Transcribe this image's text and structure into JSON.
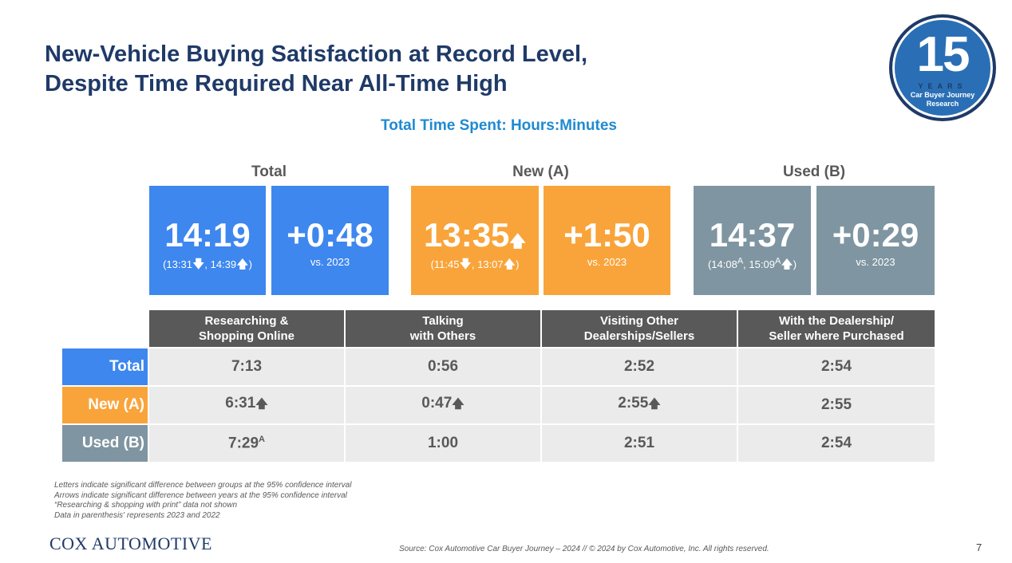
{
  "title_line1": "New-Vehicle Buying Satisfaction at Record Level,",
  "title_line2": "Despite Time Required Near All-Time High",
  "subtitle": "Total Time Spent: Hours:Minutes",
  "badge": {
    "number": "15",
    "years": "YEARS",
    "line1": "Car Buyer Journey",
    "line2": "Research"
  },
  "groups": {
    "total": {
      "label": "Total",
      "time": "14:19",
      "time_sub_a": "(13:31",
      "time_sub_b": ", 14:39",
      "time_sub_c": ")",
      "change": "+0:48",
      "change_sub": "vs. 2023"
    },
    "new": {
      "label": "New (A)",
      "time": "13:35",
      "time_sub_a": "(11:45",
      "time_sub_b": ", 13:07",
      "time_sub_c": ")",
      "change": "+1:50",
      "change_sub": "vs. 2023"
    },
    "used": {
      "label": "Used (B)",
      "time": "14:37",
      "time_sub_a": "(14:08",
      "time_sub_sup1": "A",
      "time_sub_b": ", 15:09",
      "time_sub_sup2": "A",
      "time_sub_c": ")",
      "change": "+0:29",
      "change_sub": "vs. 2023"
    }
  },
  "table": {
    "headers": [
      [
        "Researching &",
        "Shopping Online"
      ],
      [
        "Talking",
        "with Others"
      ],
      [
        "Visiting Other",
        "Dealerships/Sellers"
      ],
      [
        "With the Dealership/",
        "Seller where Purchased"
      ]
    ],
    "rows": [
      {
        "label": "Total",
        "color": "#3d87ef",
        "cells": [
          "7:13",
          "0:56",
          "2:52",
          "2:54"
        ]
      },
      {
        "label": "New (A)",
        "color": "#f9a43a",
        "cells": [
          "6:31",
          "0:47",
          "2:55",
          "2:55"
        ]
      },
      {
        "label": "Used (B)",
        "color": "#7f95a1",
        "cells": [
          "7:29",
          "1:00",
          "2:51",
          "2:54"
        ]
      }
    ],
    "used_research_sup": "A"
  },
  "notes": [
    "Letters indicate significant difference between groups at the 95% confidence interval",
    "Arrows indicate significant difference between years at the 95% confidence interval",
    "“Researching & shopping with print” data not shown",
    "Data in parenthesis' represents 2023 and 2022"
  ],
  "logo": "COX AUTOMOTIVE",
  "source": "Source: Cox Automotive Car Buyer Journey – 2024 // © 2024 by Cox Automotive, Inc. All rights reserved.",
  "page_number": "7",
  "icons": {
    "down": "down-arrow-icon",
    "up": "up-arrow-icon"
  }
}
